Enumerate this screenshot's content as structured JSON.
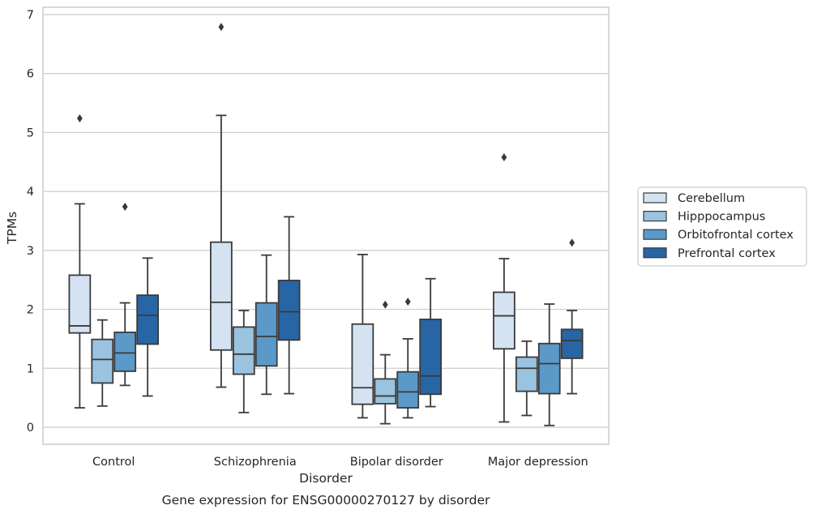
{
  "chart_data": {
    "type": "box",
    "title": "",
    "caption": "Gene expression for ENSG00000270127 by disorder",
    "xlabel": "Disorder",
    "ylabel": "TPMs",
    "ylim": [
      -0.3,
      7.1
    ],
    "yticks": [
      0,
      1,
      2,
      3,
      4,
      5,
      6,
      7
    ],
    "grid": "horizontal",
    "legend_position": "right",
    "categories": [
      "Control",
      "Schizophrenia",
      "Bipolar disorder",
      "Major depression"
    ],
    "series": [
      {
        "name": "Cerebellum",
        "color": "#d4e2f1",
        "boxes": [
          {
            "whislo": 0.33,
            "q1": 1.6,
            "med": 1.72,
            "q3": 2.58,
            "whishi": 3.79,
            "fliers": [
              5.24
            ]
          },
          {
            "whislo": 0.68,
            "q1": 1.31,
            "med": 2.12,
            "q3": 3.14,
            "whishi": 5.29,
            "fliers": [
              6.79
            ]
          },
          {
            "whislo": 0.16,
            "q1": 0.39,
            "med": 0.67,
            "q3": 1.75,
            "whishi": 2.93,
            "fliers": []
          },
          {
            "whislo": 0.09,
            "q1": 1.33,
            "med": 1.89,
            "q3": 2.29,
            "whishi": 2.86,
            "fliers": [
              4.58
            ]
          }
        ]
      },
      {
        "name": "Hipppocampus",
        "color": "#9ac3df",
        "boxes": [
          {
            "whislo": 0.36,
            "q1": 0.75,
            "med": 1.15,
            "q3": 1.49,
            "whishi": 1.82,
            "fliers": []
          },
          {
            "whislo": 0.25,
            "q1": 0.9,
            "med": 1.24,
            "q3": 1.7,
            "whishi": 1.98,
            "fliers": []
          },
          {
            "whislo": 0.06,
            "q1": 0.4,
            "med": 0.53,
            "q3": 0.82,
            "whishi": 1.23,
            "fliers": [
              2.08
            ]
          },
          {
            "whislo": 0.2,
            "q1": 0.61,
            "med": 1.0,
            "q3": 1.19,
            "whishi": 1.46,
            "fliers": []
          }
        ]
      },
      {
        "name": "Orbitofrontal cortex",
        "color": "#5b99c8",
        "boxes": [
          {
            "whislo": 0.71,
            "q1": 0.95,
            "med": 1.26,
            "q3": 1.61,
            "whishi": 2.11,
            "fliers": [
              3.74
            ]
          },
          {
            "whislo": 0.56,
            "q1": 1.04,
            "med": 1.54,
            "q3": 2.11,
            "whishi": 2.92,
            "fliers": []
          },
          {
            "whislo": 0.16,
            "q1": 0.33,
            "med": 0.6,
            "q3": 0.94,
            "whishi": 1.5,
            "fliers": [
              2.13
            ]
          },
          {
            "whislo": 0.03,
            "q1": 0.57,
            "med": 1.08,
            "q3": 1.42,
            "whishi": 2.09,
            "fliers": []
          }
        ]
      },
      {
        "name": "Prefrontal cortex",
        "color": "#2865a4",
        "boxes": [
          {
            "whislo": 0.53,
            "q1": 1.41,
            "med": 1.9,
            "q3": 2.24,
            "whishi": 2.87,
            "fliers": []
          },
          {
            "whislo": 0.57,
            "q1": 1.48,
            "med": 1.96,
            "q3": 2.49,
            "whishi": 3.57,
            "fliers": []
          },
          {
            "whislo": 0.35,
            "q1": 0.56,
            "med": 0.87,
            "q3": 1.83,
            "whishi": 2.52,
            "fliers": []
          },
          {
            "whislo": 0.57,
            "q1": 1.17,
            "med": 1.47,
            "q3": 1.66,
            "whishi": 1.98,
            "fliers": [
              3.13
            ]
          }
        ]
      }
    ]
  }
}
